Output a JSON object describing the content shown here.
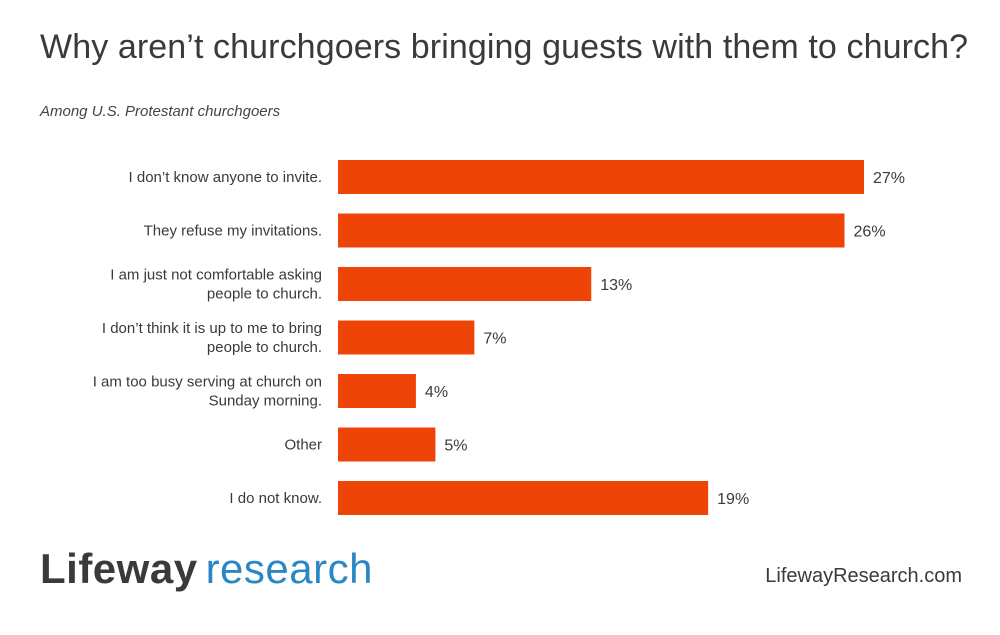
{
  "title": "Why aren’t churchgoers bringing guests with them to church?",
  "subtitle": "Among U.S. Protestant churchgoers",
  "colors": {
    "bar": "#ef4408",
    "text": "#3a3a3a",
    "brand_blue": "#2b86c5"
  },
  "chart_data": {
    "type": "bar",
    "orientation": "horizontal",
    "categories": [
      [
        "I don’t know anyone to invite."
      ],
      [
        "They refuse my invitations."
      ],
      [
        "I am just not comfortable asking",
        "people to church."
      ],
      [
        "I don’t think it is up to me to bring",
        "people to church."
      ],
      [
        "I am too busy serving at church on",
        "Sunday morning."
      ],
      [
        "Other"
      ],
      [
        "I do not know."
      ]
    ],
    "values": [
      27,
      26,
      13,
      7,
      4,
      5,
      19
    ],
    "value_labels": [
      "27%",
      "26%",
      "13%",
      "7%",
      "4%",
      "5%",
      "19%"
    ],
    "xlim": [
      0,
      27
    ],
    "grid": false,
    "legend": "none"
  },
  "footer": {
    "logo_word": "Lifeway",
    "logo_sub": "research",
    "url": "LifewayResearch.com"
  }
}
